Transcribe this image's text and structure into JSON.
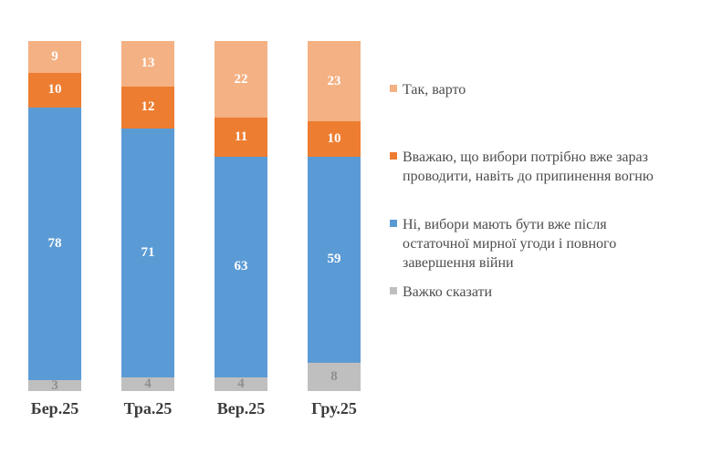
{
  "chart_data": {
    "type": "bar",
    "subtype": "stacked-100-percent",
    "orientation": "vertical",
    "title": "",
    "xlabel": "",
    "ylabel": "",
    "ylim": [
      0,
      100
    ],
    "grid": false,
    "axis_lines": false,
    "value_labels": true,
    "legend_position": "right",
    "stack_order": "top-to-bottom-as-listed",
    "categories": [
      "Бер.25",
      "Тра.25",
      "Вер.25",
      "Гру.25"
    ],
    "series": [
      {
        "name": "Так, варто",
        "color": "#F4B183",
        "label_color": "#FFFFFF",
        "values": [
          9,
          13,
          22,
          23
        ],
        "legend_lines": [
          "Так, варто"
        ]
      },
      {
        "name": "Вважаю, що вибори потрібно вже зараз проводити, навіть до припинення вогню",
        "color": "#ED7D31",
        "label_color": "#FFFFFF",
        "values": [
          10,
          12,
          11,
          10
        ],
        "legend_lines": [
          "Вважаю, що вибори потрібно вже зараз",
          "проводити, навіть до припинення вогню"
        ]
      },
      {
        "name": "Ні, вибори мають бути вже після остаточної мирної угоди і повного завершення війни",
        "color": "#5B9BD5",
        "label_color": "#FFFFFF",
        "values": [
          78,
          71,
          63,
          59
        ],
        "legend_lines": [
          "Ні, вибори мають бути вже після",
          "остаточної мирної угоди і повного",
          "завершення війни"
        ]
      },
      {
        "name": "Важко сказати",
        "color": "#BFBFBF",
        "label_color": "#8F8F8F",
        "values": [
          3,
          4,
          4,
          8
        ],
        "legend_lines": [
          "Важко сказати"
        ]
      }
    ]
  }
}
